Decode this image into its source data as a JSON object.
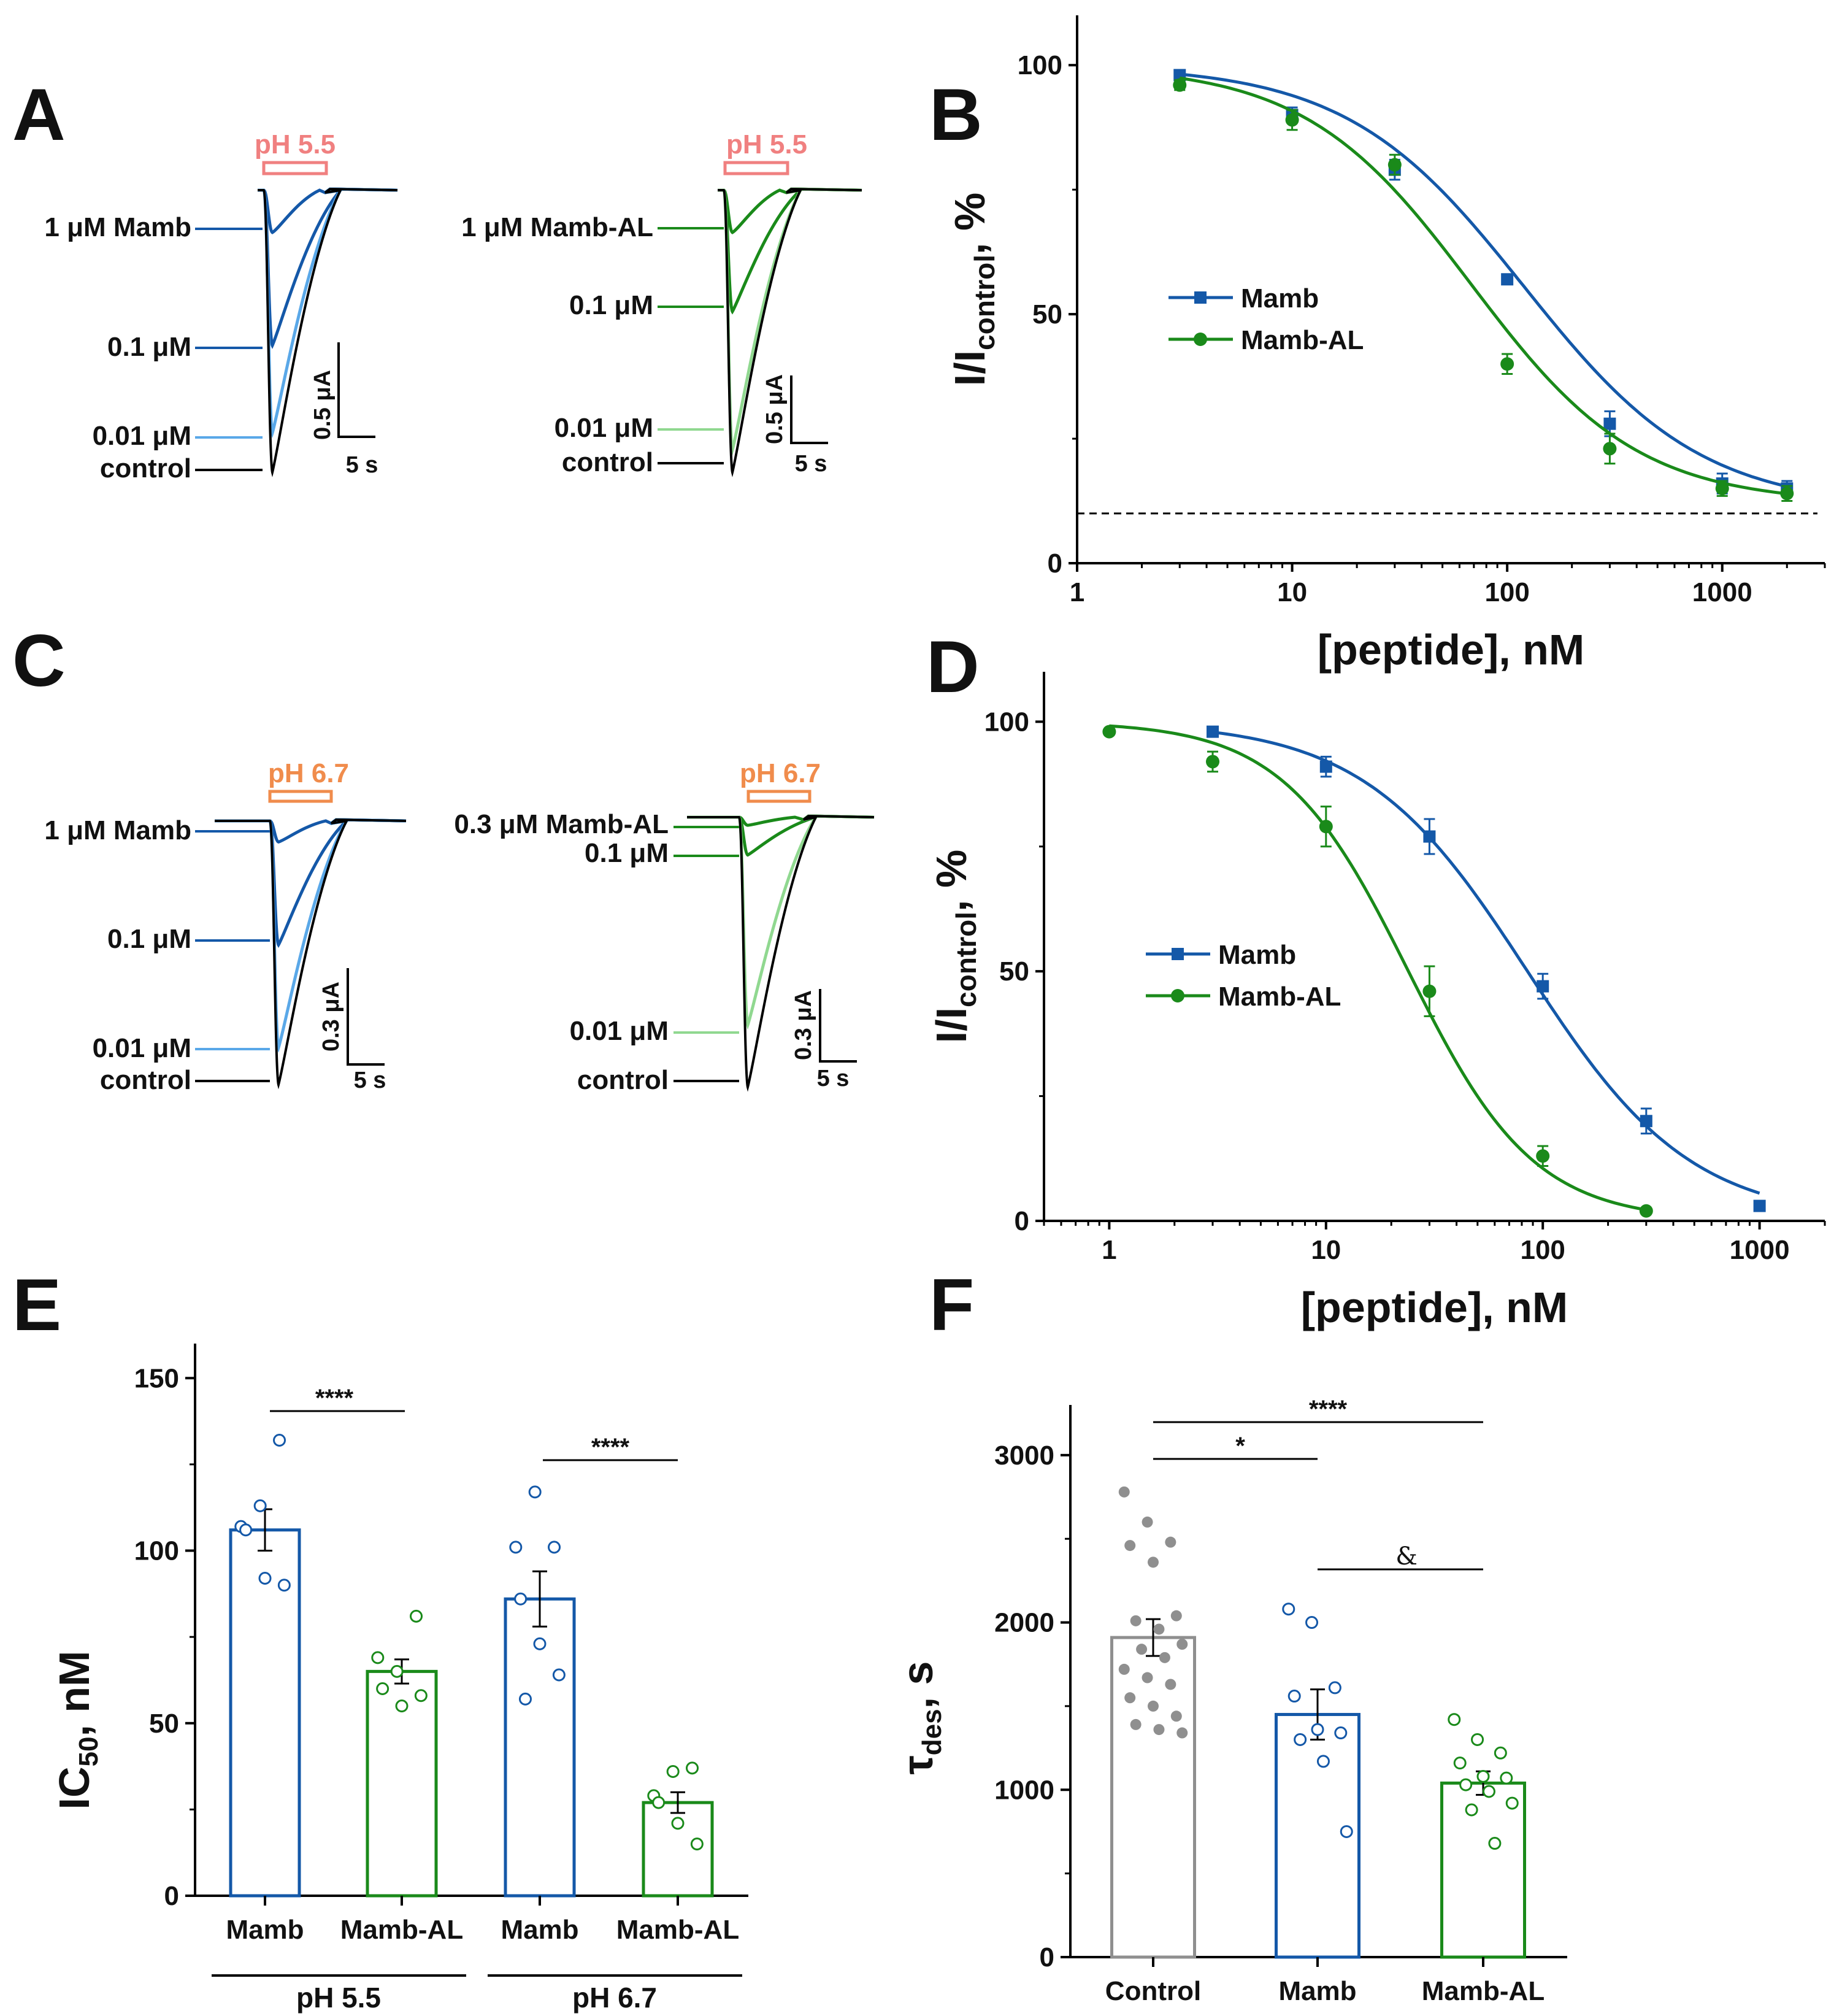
{
  "colors": {
    "blue": "#1458A8",
    "green": "#1A8A1A",
    "black": "#000000",
    "gray": "#8F8F8F",
    "salmon": "#F08080",
    "orange": "#F08C4C",
    "lightblue": "#5AA8E8",
    "lightgreen": "#90D890"
  },
  "panels": {
    "A": {
      "letter": "A",
      "left": {
        "stim_label": "pH 5.5",
        "traces": [
          {
            "label": "1 μM Mamb",
            "peak": 0.15
          },
          {
            "label": "0.1 μM",
            "peak": 0.55
          },
          {
            "label": "0.01 μM",
            "peak": 0.86
          },
          {
            "label": "control",
            "peak": 1.0
          }
        ],
        "scale_y": "0.5 μA",
        "scale_x": "5 s"
      },
      "right": {
        "stim_label": "pH 5.5",
        "traces": [
          {
            "label": "1 μM Mamb-AL",
            "peak": 0.15
          },
          {
            "label": "0.1 μM",
            "peak": 0.43
          },
          {
            "label": "0.01 μM",
            "peak": 0.92
          },
          {
            "label": "control",
            "peak": 1.0
          }
        ],
        "scale_y": "0.5 μA",
        "scale_x": "5 s"
      }
    },
    "C": {
      "letter": "C",
      "left": {
        "stim_label": "pH 6.7",
        "traces": [
          {
            "label": "1 μM Mamb",
            "peak": 0.08
          },
          {
            "label": "0.1 μM",
            "peak": 0.47
          },
          {
            "label": "0.01 μM",
            "peak": 0.86
          },
          {
            "label": "control",
            "peak": 1.0
          }
        ],
        "scale_y": "0.3 μA",
        "scale_x": "5 s"
      },
      "right": {
        "stim_label": "pH 6.7",
        "traces": [
          {
            "label": "0.3 μM Mamb-AL",
            "peak": 0.03
          },
          {
            "label": "0.1 μM",
            "peak": 0.14
          },
          {
            "label": "0.01 μM",
            "peak": 0.77
          },
          {
            "label": "control",
            "peak": 1.0
          }
        ],
        "scale_y": "0.3 μA",
        "scale_x": "5 s"
      }
    },
    "E": {
      "letter": "E",
      "y_label_main": "IC",
      "y_label_sub": "50",
      "y_label_tail": ", nM",
      "group_labels": [
        "pH 5.5",
        "pH 6.7"
      ],
      "sig_labels": [
        "****",
        "****"
      ]
    },
    "F": {
      "letter": "F",
      "y_label_main": "τ",
      "y_label_sub": "des",
      "y_label_tail": ", s",
      "sig_labels": [
        "*",
        "****",
        "&"
      ]
    }
  },
  "chart_data": [
    {
      "id": "B",
      "type": "line",
      "letter": "B",
      "xlabel": "[peptide], nM",
      "ylabel": "I/I",
      "ylabel_sub": "control",
      "ylabel_tail": ", %",
      "xscale": "log",
      "xlim": [
        1,
        3000
      ],
      "ylim": [
        0,
        110
      ],
      "xticks": [
        1,
        10,
        100,
        1000
      ],
      "xtick_labels": [
        "1",
        "10",
        "100",
        "1000"
      ],
      "yticks": [
        0,
        50,
        100
      ],
      "ytick_labels": [
        "0",
        "50",
        "100"
      ],
      "baseline": 10,
      "legend": "center-left",
      "series": [
        {
          "name": "Mamb",
          "marker": "square",
          "color": "#1458A8",
          "x": [
            3,
            10,
            30,
            100,
            300,
            1000,
            2000
          ],
          "y": [
            98,
            90,
            79,
            57,
            28,
            16,
            15
          ],
          "err": [
            1,
            1.5,
            2,
            1,
            2.5,
            2,
            1.5
          ],
          "fit": {
            "ic50": 120,
            "hill": 1.05,
            "bottom": 11,
            "top": 100
          }
        },
        {
          "name": "Mamb-AL",
          "marker": "circle",
          "color": "#1A8A1A",
          "x": [
            3,
            10,
            30,
            100,
            300,
            1000,
            2000
          ],
          "y": [
            96,
            89,
            80,
            40,
            23,
            15,
            14
          ],
          "err": [
            1,
            2,
            2,
            2,
            3,
            1.5,
            1.5
          ],
          "fit": {
            "ic50": 68,
            "hill": 1.12,
            "bottom": 12,
            "top": 100
          }
        }
      ]
    },
    {
      "id": "D",
      "type": "line",
      "letter": "D",
      "xlabel": "[peptide], nM",
      "ylabel": "I/I",
      "ylabel_sub": "control",
      "ylabel_tail": ", %",
      "xscale": "log",
      "xlim": [
        0.5,
        2000
      ],
      "ylim": [
        0,
        110
      ],
      "xticks": [
        1,
        10,
        100,
        1000
      ],
      "xtick_labels": [
        "1",
        "10",
        "100",
        "1000"
      ],
      "yticks": [
        0,
        50,
        100
      ],
      "ytick_labels": [
        "0",
        "50",
        "100"
      ],
      "legend": "center-left",
      "series": [
        {
          "name": "Mamb",
          "marker": "square",
          "color": "#1458A8",
          "x": [
            3,
            10,
            30,
            100,
            300,
            1000
          ],
          "y": [
            98,
            91,
            77,
            47,
            20,
            3
          ],
          "err": [
            1,
            2,
            3.5,
            2.5,
            2.5,
            0.5
          ],
          "fit": {
            "ic50": 85,
            "hill": 1.15,
            "bottom": 0,
            "top": 100
          }
        },
        {
          "name": "Mamb-AL",
          "marker": "circle",
          "color": "#1A8A1A",
          "x": [
            1,
            3,
            10,
            30,
            100,
            300
          ],
          "y": [
            98,
            92,
            79,
            46,
            13,
            2
          ],
          "err": [
            0.5,
            2,
            4,
            5,
            2,
            0.5
          ],
          "fit": {
            "ic50": 24,
            "hill": 1.5,
            "bottom": 0,
            "top": 100
          }
        }
      ]
    },
    {
      "id": "E",
      "type": "bar",
      "letter": "E",
      "ylim": [
        0,
        160
      ],
      "yticks": [
        0,
        50,
        100,
        150
      ],
      "ytick_labels": [
        "0",
        "50",
        "100",
        "150"
      ],
      "categories": [
        "Mamb",
        "Mamb-AL",
        "Mamb",
        "Mamb-AL"
      ],
      "bars": [
        {
          "category": "Mamb",
          "group": "pH 5.5",
          "color": "#1458A8",
          "mean": 106,
          "sem": 6,
          "points": [
            107,
            113,
            132,
            106,
            92,
            90
          ]
        },
        {
          "category": "Mamb-AL",
          "group": "pH 5.5",
          "color": "#1A8A1A",
          "mean": 65,
          "sem": 3.5,
          "points": [
            69,
            65,
            81,
            60,
            55,
            58
          ]
        },
        {
          "category": "Mamb",
          "group": "pH 6.7",
          "color": "#1458A8",
          "mean": 86,
          "sem": 8,
          "points": [
            101,
            117,
            101,
            86,
            73,
            64,
            57
          ]
        },
        {
          "category": "Mamb-AL",
          "group": "pH 6.7",
          "color": "#1A8A1A",
          "mean": 27,
          "sem": 3,
          "points": [
            29,
            36,
            37,
            27,
            21,
            15
          ]
        }
      ]
    },
    {
      "id": "F",
      "type": "bar",
      "letter": "F",
      "ylim": [
        0,
        3300
      ],
      "yticks": [
        0,
        1000,
        2000,
        3000
      ],
      "ytick_labels": [
        "0",
        "1000",
        "2000",
        "3000"
      ],
      "categories": [
        "Control",
        "Mamb",
        "Mamb-AL"
      ],
      "bars": [
        {
          "category": "Control",
          "color": "#8F8F8F",
          "filled": true,
          "mean": 1910,
          "sem": 110,
          "points": [
            2780,
            2600,
            2480,
            2460,
            2360,
            2040,
            2010,
            1960,
            1870,
            1840,
            1790,
            1720,
            1670,
            1630,
            1550,
            1500,
            1440,
            1390,
            1360,
            1340
          ]
        },
        {
          "category": "Mamb",
          "color": "#1458A8",
          "filled": false,
          "mean": 1450,
          "sem": 150,
          "points": [
            2080,
            2000,
            1610,
            1560,
            1360,
            1340,
            1300,
            1170,
            750
          ]
        },
        {
          "category": "Mamb-AL",
          "color": "#1A8A1A",
          "filled": false,
          "mean": 1040,
          "sem": 70,
          "points": [
            1420,
            1300,
            1220,
            1160,
            1080,
            1070,
            1030,
            990,
            920,
            880,
            680
          ]
        }
      ]
    }
  ]
}
